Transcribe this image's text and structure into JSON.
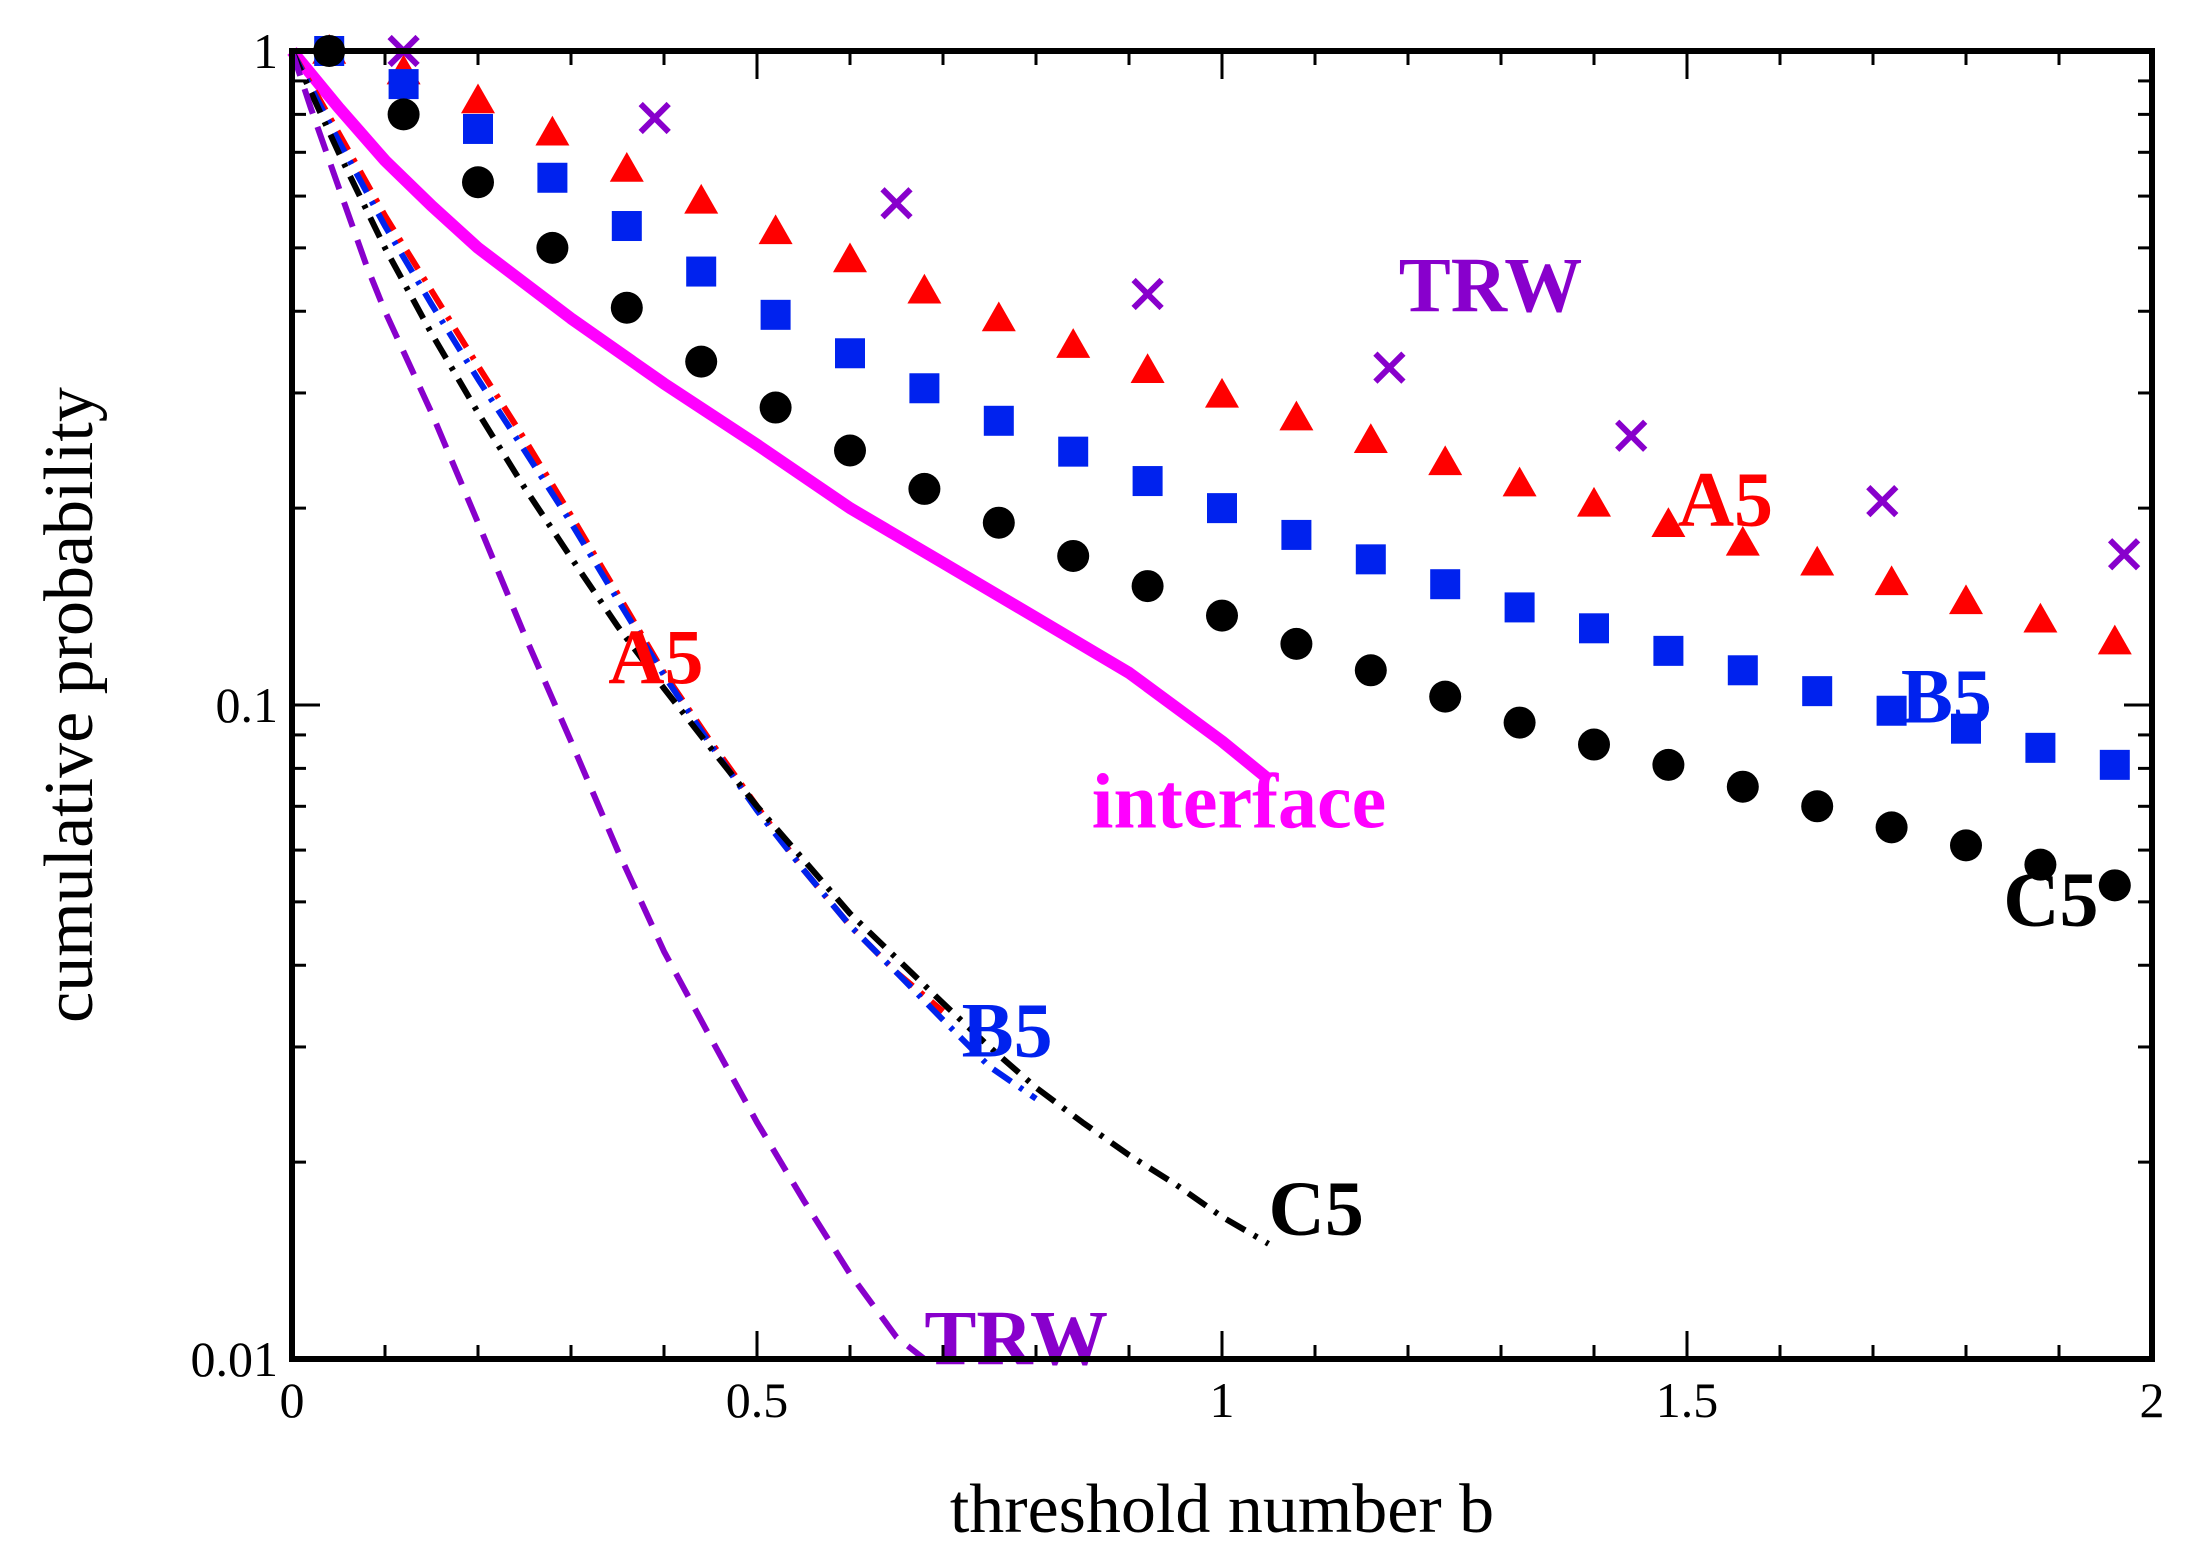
{
  "chart_data": {
    "type": "scatter",
    "title": "",
    "xlabel": "threshold number b",
    "ylabel": "cumulative probability",
    "xlim": [
      0,
      2
    ],
    "ylim": [
      0.01,
      1
    ],
    "yscale": "log",
    "xticks": [
      0,
      0.5,
      1,
      1.5,
      2
    ],
    "xtick_labels": [
      "0",
      "0.5",
      "1",
      "1.5",
      "2"
    ],
    "yticks": [
      0.01,
      0.1,
      1
    ],
    "ytick_labels": [
      "0.01",
      "0.1",
      "1"
    ],
    "grid": false,
    "series": [
      {
        "name": "A5 (markers)",
        "style": "triangle",
        "color": "#ff0000",
        "x": [
          0.04,
          0.12,
          0.2,
          0.28,
          0.36,
          0.44,
          0.52,
          0.6,
          0.68,
          0.76,
          0.84,
          0.92,
          1.0,
          1.08,
          1.16,
          1.24,
          1.32,
          1.4,
          1.48,
          1.56,
          1.64,
          1.72,
          1.8,
          1.88,
          1.96
        ],
        "y": [
          1.0,
          0.93,
          0.84,
          0.75,
          0.66,
          0.59,
          0.53,
          0.48,
          0.43,
          0.39,
          0.355,
          0.325,
          0.298,
          0.275,
          0.254,
          0.235,
          0.218,
          0.203,
          0.189,
          0.177,
          0.165,
          0.154,
          0.144,
          0.135,
          0.125
        ]
      },
      {
        "name": "B5 (markers)",
        "style": "square",
        "color": "#0022ee",
        "x": [
          0.04,
          0.12,
          0.2,
          0.28,
          0.36,
          0.44,
          0.52,
          0.6,
          0.68,
          0.76,
          0.84,
          0.92,
          1.0,
          1.08,
          1.16,
          1.24,
          1.32,
          1.4,
          1.48,
          1.56,
          1.64,
          1.72,
          1.8,
          1.88,
          1.96
        ],
        "y": [
          1.0,
          0.89,
          0.76,
          0.64,
          0.54,
          0.46,
          0.395,
          0.345,
          0.305,
          0.272,
          0.244,
          0.22,
          0.2,
          0.182,
          0.167,
          0.153,
          0.141,
          0.131,
          0.121,
          0.113,
          0.105,
          0.098,
          0.092,
          0.086,
          0.081
        ]
      },
      {
        "name": "C5 (markers)",
        "style": "circle",
        "color": "#000000",
        "x": [
          0.04,
          0.12,
          0.2,
          0.28,
          0.36,
          0.44,
          0.52,
          0.6,
          0.68,
          0.76,
          0.84,
          0.92,
          1.0,
          1.08,
          1.16,
          1.24,
          1.32,
          1.4,
          1.48,
          1.56,
          1.64,
          1.72,
          1.8,
          1.88,
          1.96
        ],
        "y": [
          1.0,
          0.8,
          0.63,
          0.5,
          0.405,
          0.335,
          0.285,
          0.245,
          0.214,
          0.19,
          0.169,
          0.152,
          0.137,
          0.124,
          0.113,
          0.103,
          0.094,
          0.087,
          0.081,
          0.075,
          0.07,
          0.065,
          0.061,
          0.057,
          0.053
        ]
      },
      {
        "name": "TRW (markers)",
        "style": "x",
        "color": "#8800cc",
        "x": [
          0.12,
          0.39,
          0.65,
          0.92,
          1.18,
          1.44,
          1.71,
          1.97
        ],
        "y": [
          1.02,
          0.79,
          0.585,
          0.425,
          0.328,
          0.258,
          0.205,
          0.17
        ]
      },
      {
        "name": "interface",
        "style": "solid",
        "color": "#ff00ff",
        "x": [
          0.0,
          0.05,
          0.1,
          0.15,
          0.2,
          0.3,
          0.4,
          0.5,
          0.6,
          0.7,
          0.8,
          0.9,
          1.0,
          1.05
        ],
        "y": [
          1.0,
          0.82,
          0.68,
          0.58,
          0.5,
          0.39,
          0.31,
          0.25,
          0.2,
          0.165,
          0.136,
          0.112,
          0.088,
          0.077
        ]
      },
      {
        "name": "A5 (line)",
        "style": "dash-dot",
        "color": "#ff0000",
        "x": [
          0.0,
          0.05,
          0.1,
          0.15,
          0.2,
          0.25,
          0.3,
          0.35,
          0.4,
          0.45,
          0.5,
          0.55,
          0.6,
          0.65,
          0.7
        ],
        "y": [
          1.0,
          0.75,
          0.56,
          0.43,
          0.33,
          0.255,
          0.195,
          0.148,
          0.112,
          0.088,
          0.07,
          0.056,
          0.046,
          0.039,
          0.034
        ]
      },
      {
        "name": "B5 (line)",
        "style": "dash-dot",
        "color": "#0022ee",
        "x": [
          0.0,
          0.05,
          0.1,
          0.15,
          0.2,
          0.25,
          0.3,
          0.35,
          0.4,
          0.45,
          0.5,
          0.55,
          0.6,
          0.65,
          0.7,
          0.75,
          0.8
        ],
        "y": [
          1.0,
          0.73,
          0.54,
          0.41,
          0.315,
          0.245,
          0.19,
          0.145,
          0.111,
          0.087,
          0.069,
          0.056,
          0.046,
          0.039,
          0.033,
          0.028,
          0.025
        ]
      },
      {
        "name": "C5 (line)",
        "style": "dash-dot",
        "color": "#000000",
        "x": [
          0.0,
          0.05,
          0.1,
          0.15,
          0.2,
          0.25,
          0.3,
          0.35,
          0.4,
          0.45,
          0.5,
          0.55,
          0.6,
          0.65,
          0.7,
          0.75,
          0.8,
          0.85,
          0.9,
          0.95,
          1.0,
          1.05
        ],
        "y": [
          1.0,
          0.7,
          0.5,
          0.37,
          0.28,
          0.215,
          0.168,
          0.132,
          0.106,
          0.086,
          0.07,
          0.058,
          0.048,
          0.041,
          0.035,
          0.03,
          0.026,
          0.023,
          0.0205,
          0.0185,
          0.0165,
          0.015
        ]
      },
      {
        "name": "TRW (line)",
        "style": "dashed",
        "color": "#8800cc",
        "x": [
          0.0,
          0.02,
          0.05,
          0.08,
          0.1,
          0.15,
          0.2,
          0.25,
          0.3,
          0.35,
          0.4,
          0.45,
          0.5,
          0.55,
          0.6,
          0.65,
          0.68
        ],
        "y": [
          1.0,
          0.82,
          0.62,
          0.47,
          0.4,
          0.28,
          0.19,
          0.128,
          0.088,
          0.06,
          0.042,
          0.031,
          0.023,
          0.0175,
          0.0135,
          0.0108,
          0.0095
        ]
      }
    ],
    "annotations": [
      {
        "text": "TRW",
        "color": "#8800cc",
        "x": 1.19,
        "y": 0.4
      },
      {
        "text": "A5",
        "color": "#ff0000",
        "x": 1.49,
        "y": 0.188
      },
      {
        "text": "B5",
        "color": "#0022ee",
        "x": 1.73,
        "y": 0.094
      },
      {
        "text": "C5",
        "color": "#000000",
        "x": 1.84,
        "y": 0.046
      },
      {
        "text": "interface",
        "color": "#ff00ff",
        "x": 0.86,
        "y": 0.065
      },
      {
        "text": "A5",
        "color": "#ff0000",
        "x": 0.34,
        "y": 0.108
      },
      {
        "text": "B5",
        "color": "#0022ee",
        "x": 0.72,
        "y": 0.029
      },
      {
        "text": "C5",
        "color": "#000000",
        "x": 1.05,
        "y": 0.0155
      },
      {
        "text": "TRW",
        "color": "#8800cc",
        "x": 0.68,
        "y": 0.0098
      }
    ]
  }
}
